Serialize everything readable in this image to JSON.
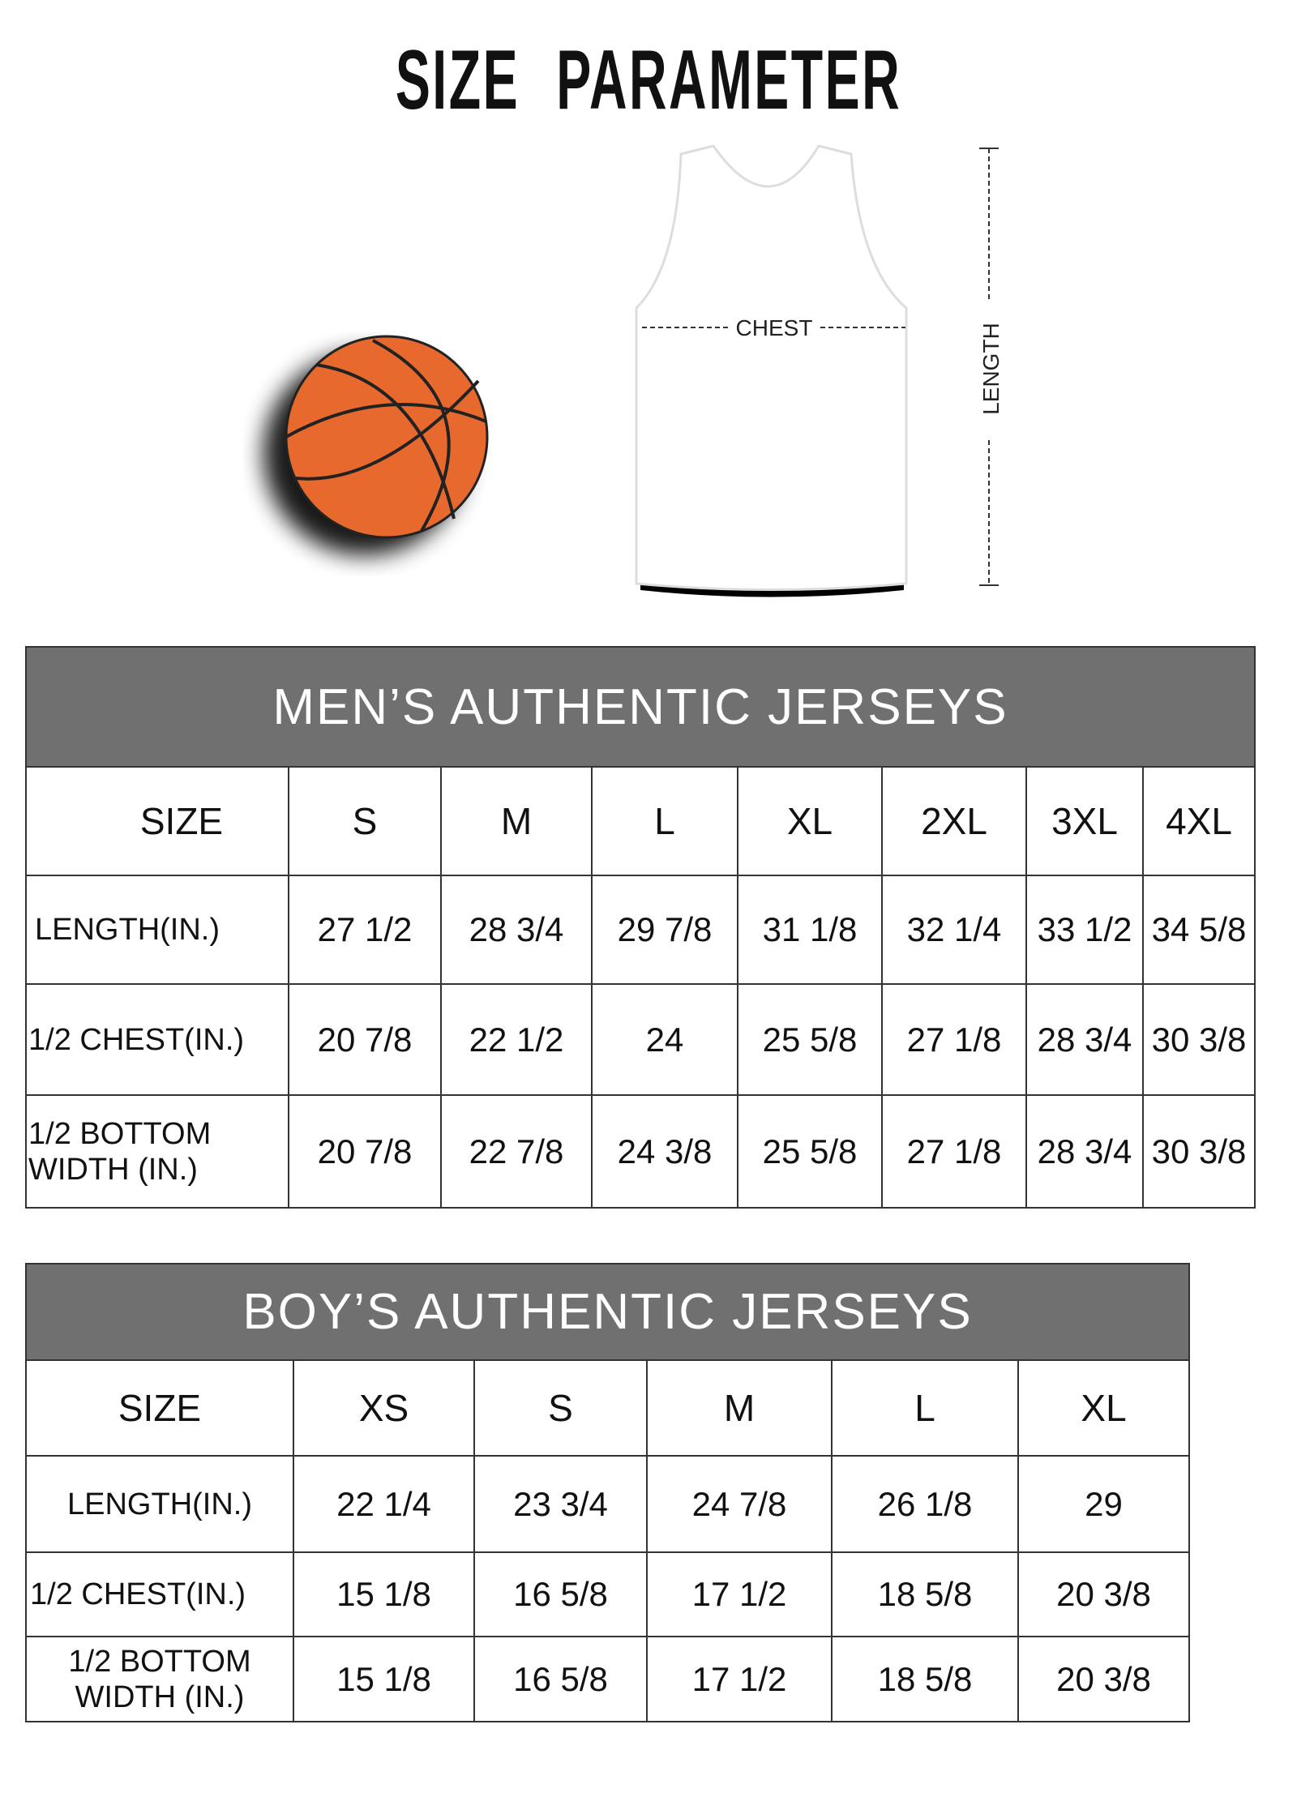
{
  "title": "SIZE PARAMETER",
  "diagram": {
    "chest_label": "CHEST",
    "length_label": "LENGTH",
    "ball_color": "#E8692E"
  },
  "men": {
    "heading": "MEN’S AUTHENTIC JERSEYS",
    "size_label": "SIZE",
    "sizes": [
      "S",
      "M",
      "L",
      "XL",
      "2XL",
      "3XL",
      "4XL"
    ],
    "rows": [
      {
        "label": "LENGTH(IN.)",
        "values": [
          "27 1/2",
          "28 3/4",
          "29 7/8",
          "31 1/8",
          "32 1/4",
          "33 1/2",
          "34 5/8"
        ]
      },
      {
        "label": "1/2 CHEST(IN.)",
        "values": [
          "20 7/8",
          "22 1/2",
          "24",
          "25 5/8",
          "27 1/8",
          "28 3/4",
          "30 3/8"
        ]
      },
      {
        "label": "1/2 BOTTOM WIDTH (IN.)",
        "values": [
          "20 7/8",
          "22 7/8",
          "24 3/8",
          "25 5/8",
          "27 1/8",
          "28 3/4",
          "30 3/8"
        ]
      }
    ]
  },
  "boys": {
    "heading": "BOY’S AUTHENTIC JERSEYS",
    "size_label": "SIZE",
    "sizes": [
      "XS",
      "S",
      "M",
      "L",
      "XL"
    ],
    "rows": [
      {
        "label": "LENGTH(IN.)",
        "values": [
          "22 1/4",
          "23 3/4",
          "24 7/8",
          "26 1/8",
          "29"
        ]
      },
      {
        "label": "1/2 CHEST(IN.)",
        "values": [
          "15 1/8",
          "16 5/8",
          "17 1/2",
          "18 5/8",
          "20 3/8"
        ]
      },
      {
        "label": "1/2 BOTTOM WIDTH (IN.)",
        "values": [
          "15 1/8",
          "16 5/8",
          "17 1/2",
          "18 5/8",
          "20 3/8"
        ]
      }
    ]
  }
}
